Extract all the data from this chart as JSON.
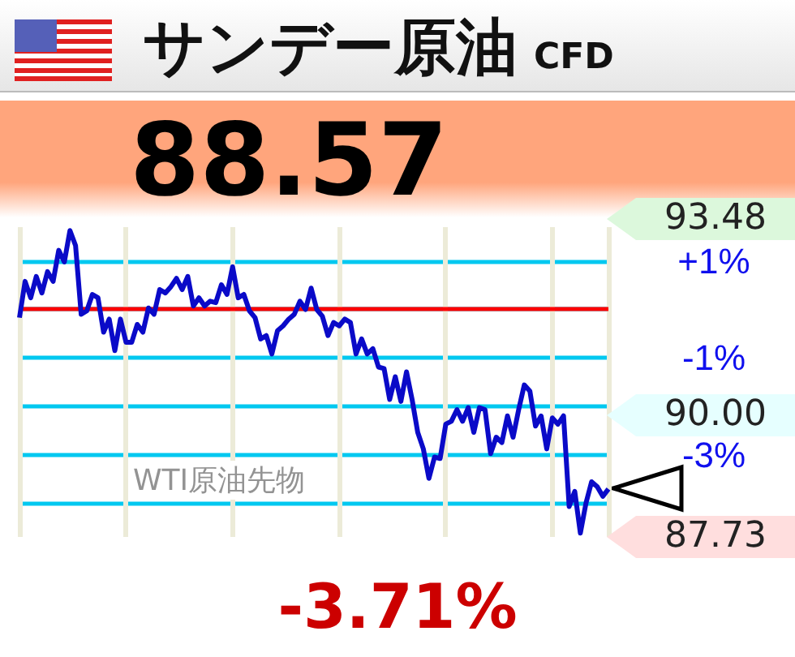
{
  "chart_data": {
    "type": "line",
    "title": "サンデー原油",
    "subtitle": "CFD",
    "categories": [
      null,
      null,
      null,
      null,
      null,
      null,
      null,
      null,
      null,
      null,
      null,
      null,
      null,
      null,
      null,
      null,
      null,
      null,
      null,
      null,
      null,
      null,
      null,
      null,
      null,
      null,
      null,
      null,
      null,
      null,
      null,
      null,
      null,
      null,
      null,
      null,
      null,
      null,
      null,
      null,
      null,
      null,
      null,
      null,
      null,
      null,
      null,
      null,
      null,
      null,
      null,
      null,
      null,
      null,
      null,
      null,
      null,
      null,
      null,
      null,
      null,
      null,
      null,
      null,
      null,
      null,
      null,
      null,
      null,
      null,
      null,
      null,
      null,
      null,
      null,
      null,
      null,
      null,
      null,
      null,
      null,
      null,
      null,
      null,
      null,
      null,
      null,
      null,
      null,
      null,
      null,
      null,
      null,
      null,
      null,
      null,
      null,
      null,
      null,
      null,
      null,
      null,
      null,
      null,
      null,
      null
    ],
    "series": [
      {
        "color": "#0a0ac8",
        "values": [
          -0.17,
          0.58,
          0.24,
          0.68,
          0.34,
          0.78,
          0.58,
          1.22,
          0.98,
          1.63,
          1.32,
          -0.1,
          -0.03,
          0.31,
          0.24,
          -0.47,
          -0.2,
          -0.85,
          -0.2,
          -0.68,
          -0.68,
          -0.31,
          -0.47,
          0.03,
          -0.1,
          0.41,
          0.34,
          0.47,
          0.64,
          0.41,
          0.68,
          0.07,
          0.24,
          0.07,
          0.17,
          0.14,
          0.51,
          0.31,
          0.88,
          0.24,
          0.31,
          -0.03,
          -0.17,
          -0.61,
          -0.54,
          -0.92,
          -0.44,
          -0.34,
          -0.2,
          -0.1,
          0.17,
          0,
          0.44,
          0,
          -0.14,
          -0.54,
          -0.27,
          -0.34,
          -0.2,
          -0.27,
          -0.92,
          -0.61,
          -0.92,
          -0.81,
          -1.19,
          -1.22,
          -1.86,
          -1.39,
          -1.9,
          -1.29,
          -1.86,
          -2.54,
          -2.88,
          -3.49,
          -3.05,
          -3.08,
          -2.37,
          -2.31,
          -2.07,
          -2.31,
          -2.03,
          -2.54,
          -2.03,
          -2.07,
          -2.98,
          -2.64,
          -2.75,
          -2.2,
          -2.64,
          -2.07,
          -1.56,
          -1.69,
          -2.41,
          -2.2,
          -2.88,
          -2.24,
          -2.37,
          -2.2,
          -4.07,
          -3.76,
          -4.62,
          -4.0,
          -3.56,
          -3.66,
          -3.86,
          -3.71
        ]
      }
    ],
    "ylim": [
      -4.7,
      1.7
    ],
    "yticks": [
      {
        "value": 1,
        "label": "+1%"
      },
      {
        "value": 0,
        "label": null
      },
      {
        "value": -1,
        "label": "-1%"
      },
      {
        "value": -2,
        "label": null
      },
      {
        "value": -3,
        "label": "-3%"
      },
      {
        "value": -4,
        "label": null
      }
    ],
    "grid": true,
    "marker": "none",
    "line_style": "solid",
    "ref_lines": [
      {
        "axis": "y",
        "value": 0,
        "color": "#ff0000"
      }
    ],
    "annotations": [
      "88.57",
      "-3.71%",
      "93.48",
      "90.00",
      "87.73",
      "WTI原油先物"
    ]
  }
}
